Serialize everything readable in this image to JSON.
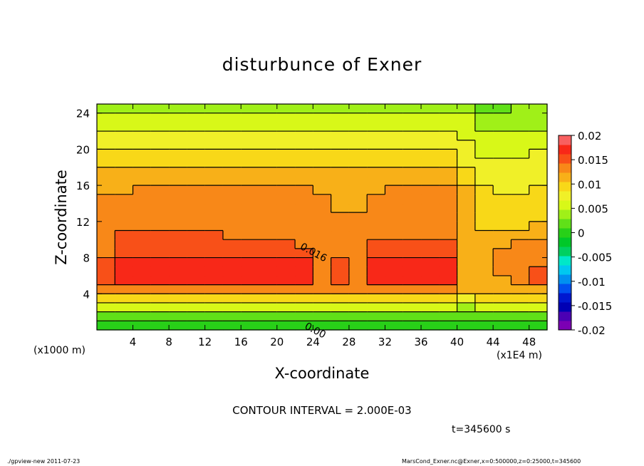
{
  "title": "disturbunce of Exner",
  "x_label": "X-coordinate",
  "y_label": "Z-coordinate",
  "x_unit": "(x1000 m)",
  "x_unit_right": "(x1E4 m)",
  "contour_interval_text": "CONTOUR INTERVAL = 2.000E-03",
  "time_text": "t=345600 s",
  "footer_left": "./gpview-new   2011-07-23",
  "footer_right": "MarsCond_Exner.nc@Exner,x=0:500000,z=0:25000,t=345600",
  "chart_data": {
    "type": "heatmap",
    "title": "disturbunce of Exner",
    "xlabel": "X-coordinate",
    "ylabel": "Z-coordinate",
    "xlim": [
      0,
      50
    ],
    "ylim": [
      0,
      25
    ],
    "x_ticks": [
      4,
      8,
      12,
      16,
      20,
      24,
      28,
      32,
      36,
      40,
      44,
      48
    ],
    "y_ticks": [
      4,
      8,
      12,
      16,
      20,
      24
    ],
    "contour_labels": [
      {
        "text": "0.016",
        "x": 22.5,
        "z": 9
      },
      {
        "text": "0.00",
        "x": 23,
        "z": 0.2
      }
    ],
    "colorbar": {
      "ticks": [
        "0.02",
        "0.015",
        "0.01",
        "0.005",
        "0",
        "-0.005",
        "-0.01",
        "-0.015",
        "-0.02"
      ],
      "levels": [
        -0.02,
        -0.018,
        -0.016,
        -0.014,
        -0.012,
        -0.01,
        -0.008,
        -0.006,
        -0.004,
        -0.002,
        0,
        0.002,
        0.004,
        0.006,
        0.008,
        0.01,
        0.012,
        0.014,
        0.016,
        0.018,
        0.02
      ],
      "colors": [
        "#7b00b4",
        "#4b00b4",
        "#0000b4",
        "#0018d0",
        "#0050f0",
        "#0090f0",
        "#00c8f0",
        "#00e8c8",
        "#00d060",
        "#00c828",
        "#28d018",
        "#60e018",
        "#a0f018",
        "#d8f818",
        "#f0f028",
        "#f8d818",
        "#f8b018",
        "#f88818",
        "#f85018",
        "#f82818",
        "#f86060"
      ]
    },
    "field": {
      "z_levels": [
        0.5,
        1.5,
        2.5,
        3.5,
        4.5,
        5.5,
        6.5,
        7.5,
        8.5,
        9.5,
        10.5,
        11.5,
        12.5,
        13.5,
        14.5,
        15.5,
        16.5,
        17.5,
        18.5,
        19.5,
        20.5,
        21.5,
        22.5,
        23.5,
        24.5
      ],
      "x_centers": [
        1,
        3,
        5,
        7,
        9,
        11,
        13,
        15,
        17,
        19,
        21,
        23,
        25,
        27,
        29,
        31,
        33,
        35,
        37,
        39,
        41,
        43,
        45,
        47,
        49
      ],
      "values": [
        [
          0.0005,
          0.0005,
          0.0005,
          0.0005,
          0.0005,
          0.0005,
          0.0005,
          0.0005,
          0.0005,
          0.0005,
          0.0005,
          0.0005,
          0.0005,
          0.0005,
          0.0005,
          0.0005,
          0.0005,
          0.0005,
          0.0005,
          0.0005,
          0.0005,
          0.0005,
          0.0005,
          0.0005,
          0.0005
        ],
        [
          0.003,
          0.003,
          0.003,
          0.003,
          0.003,
          0.003,
          0.003,
          0.003,
          0.003,
          0.003,
          0.003,
          0.003,
          0.003,
          0.003,
          0.003,
          0.003,
          0.003,
          0.003,
          0.003,
          0.003,
          0.003,
          0.003,
          0.003,
          0.003,
          0.003
        ],
        [
          0.007,
          0.007,
          0.007,
          0.007,
          0.007,
          0.007,
          0.007,
          0.007,
          0.007,
          0.007,
          0.007,
          0.007,
          0.007,
          0.007,
          0.007,
          0.007,
          0.007,
          0.007,
          0.007,
          0.007,
          0.005,
          0.007,
          0.007,
          0.007,
          0.007
        ],
        [
          0.011,
          0.011,
          0.011,
          0.011,
          0.011,
          0.011,
          0.011,
          0.011,
          0.011,
          0.011,
          0.011,
          0.011,
          0.011,
          0.011,
          0.011,
          0.011,
          0.011,
          0.011,
          0.011,
          0.011,
          0.009,
          0.011,
          0.011,
          0.011,
          0.011
        ],
        [
          0.015,
          0.015,
          0.015,
          0.015,
          0.015,
          0.015,
          0.015,
          0.015,
          0.015,
          0.015,
          0.015,
          0.015,
          0.015,
          0.015,
          0.015,
          0.015,
          0.015,
          0.015,
          0.015,
          0.015,
          0.013,
          0.013,
          0.013,
          0.013,
          0.013
        ],
        [
          0.017,
          0.019,
          0.019,
          0.019,
          0.019,
          0.019,
          0.019,
          0.019,
          0.019,
          0.019,
          0.019,
          0.019,
          0.015,
          0.017,
          0.015,
          0.019,
          0.019,
          0.019,
          0.019,
          0.019,
          0.013,
          0.013,
          0.013,
          0.015,
          0.017
        ],
        [
          0.017,
          0.019,
          0.019,
          0.019,
          0.019,
          0.019,
          0.019,
          0.019,
          0.019,
          0.019,
          0.019,
          0.019,
          0.015,
          0.017,
          0.015,
          0.019,
          0.019,
          0.019,
          0.019,
          0.019,
          0.013,
          0.013,
          0.015,
          0.015,
          0.017
        ],
        [
          0.017,
          0.019,
          0.019,
          0.019,
          0.019,
          0.019,
          0.019,
          0.019,
          0.019,
          0.019,
          0.019,
          0.019,
          0.015,
          0.017,
          0.015,
          0.019,
          0.019,
          0.019,
          0.019,
          0.019,
          0.013,
          0.013,
          0.015,
          0.015,
          0.015
        ],
        [
          0.015,
          0.017,
          0.017,
          0.017,
          0.017,
          0.017,
          0.017,
          0.017,
          0.017,
          0.017,
          0.017,
          0.017,
          0.015,
          0.015,
          0.015,
          0.017,
          0.017,
          0.017,
          0.017,
          0.017,
          0.013,
          0.013,
          0.015,
          0.015,
          0.015
        ],
        [
          0.015,
          0.017,
          0.017,
          0.017,
          0.017,
          0.017,
          0.017,
          0.017,
          0.017,
          0.017,
          0.017,
          0.015,
          0.015,
          0.015,
          0.015,
          0.017,
          0.017,
          0.017,
          0.017,
          0.017,
          0.013,
          0.013,
          0.013,
          0.015,
          0.015
        ],
        [
          0.015,
          0.017,
          0.017,
          0.017,
          0.017,
          0.017,
          0.017,
          0.015,
          0.015,
          0.015,
          0.015,
          0.015,
          0.015,
          0.015,
          0.015,
          0.015,
          0.015,
          0.015,
          0.015,
          0.015,
          0.013,
          0.013,
          0.013,
          0.013,
          0.013
        ],
        [
          0.015,
          0.015,
          0.015,
          0.015,
          0.015,
          0.015,
          0.015,
          0.015,
          0.015,
          0.015,
          0.015,
          0.015,
          0.015,
          0.015,
          0.015,
          0.015,
          0.015,
          0.015,
          0.015,
          0.015,
          0.013,
          0.011,
          0.011,
          0.011,
          0.013
        ],
        [
          0.015,
          0.015,
          0.015,
          0.015,
          0.015,
          0.015,
          0.015,
          0.015,
          0.015,
          0.015,
          0.015,
          0.015,
          0.015,
          0.015,
          0.015,
          0.015,
          0.015,
          0.015,
          0.015,
          0.015,
          0.013,
          0.011,
          0.011,
          0.011,
          0.011
        ],
        [
          0.015,
          0.015,
          0.015,
          0.015,
          0.015,
          0.015,
          0.015,
          0.015,
          0.015,
          0.015,
          0.015,
          0.015,
          0.015,
          0.013,
          0.013,
          0.015,
          0.015,
          0.015,
          0.015,
          0.015,
          0.013,
          0.011,
          0.011,
          0.011,
          0.011
        ],
        [
          0.015,
          0.015,
          0.015,
          0.015,
          0.015,
          0.015,
          0.015,
          0.015,
          0.015,
          0.015,
          0.015,
          0.015,
          0.015,
          0.013,
          0.013,
          0.015,
          0.015,
          0.015,
          0.015,
          0.015,
          0.013,
          0.011,
          0.011,
          0.011,
          0.011
        ],
        [
          0.013,
          0.013,
          0.015,
          0.015,
          0.015,
          0.015,
          0.015,
          0.015,
          0.015,
          0.015,
          0.015,
          0.015,
          0.013,
          0.013,
          0.013,
          0.013,
          0.015,
          0.015,
          0.015,
          0.015,
          0.013,
          0.011,
          0.009,
          0.009,
          0.011
        ],
        [
          0.013,
          0.013,
          0.013,
          0.013,
          0.013,
          0.013,
          0.013,
          0.013,
          0.013,
          0.013,
          0.013,
          0.013,
          0.013,
          0.013,
          0.013,
          0.013,
          0.013,
          0.013,
          0.013,
          0.013,
          0.011,
          0.009,
          0.009,
          0.009,
          0.009
        ],
        [
          0.013,
          0.013,
          0.013,
          0.013,
          0.013,
          0.013,
          0.013,
          0.013,
          0.013,
          0.013,
          0.013,
          0.013,
          0.013,
          0.013,
          0.013,
          0.013,
          0.013,
          0.013,
          0.013,
          0.013,
          0.011,
          0.009,
          0.009,
          0.009,
          0.009
        ],
        [
          0.011,
          0.011,
          0.011,
          0.011,
          0.011,
          0.011,
          0.011,
          0.011,
          0.011,
          0.011,
          0.011,
          0.011,
          0.011,
          0.011,
          0.011,
          0.011,
          0.011,
          0.011,
          0.011,
          0.011,
          0.009,
          0.009,
          0.009,
          0.009,
          0.009
        ],
        [
          0.011,
          0.011,
          0.011,
          0.011,
          0.011,
          0.011,
          0.011,
          0.011,
          0.011,
          0.011,
          0.011,
          0.011,
          0.011,
          0.011,
          0.011,
          0.011,
          0.011,
          0.011,
          0.011,
          0.011,
          0.009,
          0.007,
          0.007,
          0.007,
          0.009
        ],
        [
          0.009,
          0.009,
          0.009,
          0.009,
          0.009,
          0.009,
          0.009,
          0.009,
          0.009,
          0.009,
          0.009,
          0.009,
          0.009,
          0.009,
          0.009,
          0.009,
          0.009,
          0.009,
          0.009,
          0.009,
          0.009,
          0.007,
          0.007,
          0.007,
          0.007
        ],
        [
          0.009,
          0.009,
          0.009,
          0.009,
          0.009,
          0.009,
          0.009,
          0.009,
          0.009,
          0.009,
          0.009,
          0.009,
          0.009,
          0.009,
          0.009,
          0.009,
          0.009,
          0.009,
          0.009,
          0.009,
          0.007,
          0.007,
          0.007,
          0.007,
          0.007
        ],
        [
          0.007,
          0.007,
          0.007,
          0.007,
          0.007,
          0.007,
          0.007,
          0.007,
          0.007,
          0.007,
          0.007,
          0.007,
          0.007,
          0.007,
          0.007,
          0.007,
          0.007,
          0.007,
          0.007,
          0.007,
          0.007,
          0.005,
          0.005,
          0.005,
          0.005
        ],
        [
          0.007,
          0.007,
          0.007,
          0.007,
          0.007,
          0.007,
          0.007,
          0.007,
          0.007,
          0.007,
          0.007,
          0.007,
          0.007,
          0.007,
          0.007,
          0.007,
          0.007,
          0.007,
          0.007,
          0.007,
          0.007,
          0.005,
          0.005,
          0.005,
          0.005
        ],
        [
          0.005,
          0.005,
          0.005,
          0.005,
          0.005,
          0.005,
          0.005,
          0.005,
          0.005,
          0.005,
          0.005,
          0.005,
          0.005,
          0.005,
          0.005,
          0.005,
          0.005,
          0.005,
          0.005,
          0.005,
          0.005,
          0.003,
          0.003,
          0.005,
          0.005
        ]
      ]
    }
  }
}
